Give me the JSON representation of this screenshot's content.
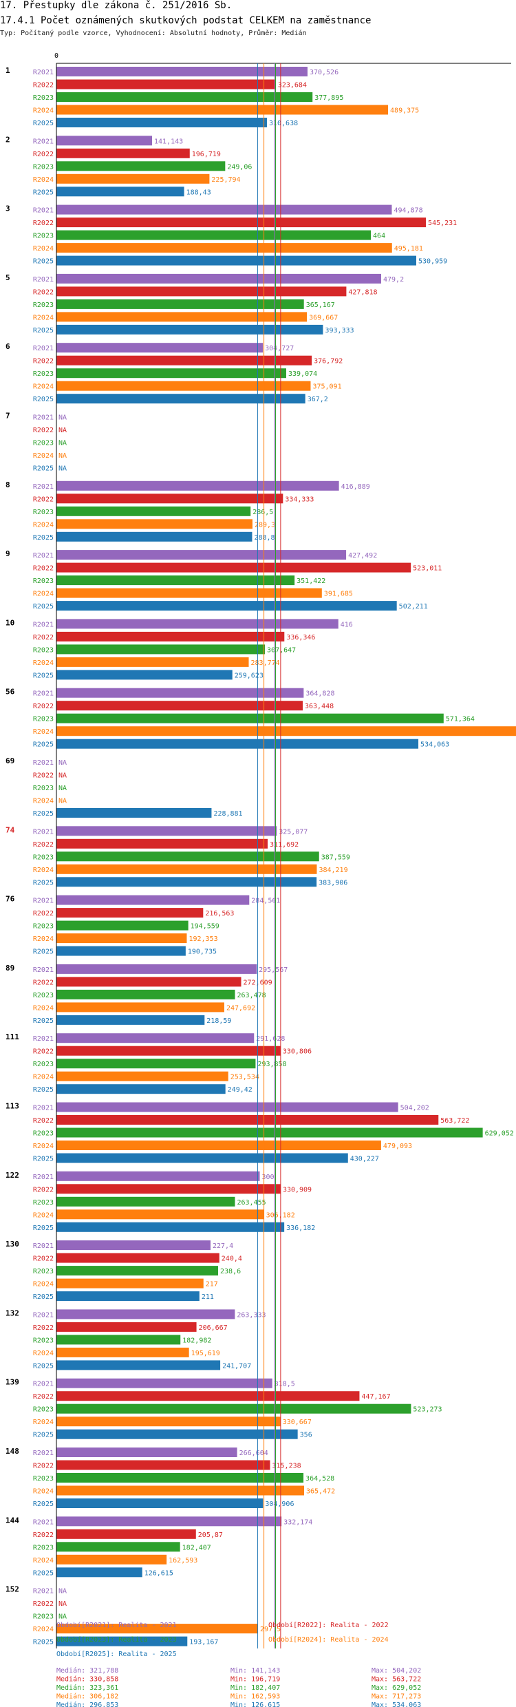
{
  "header": {
    "title": "17. Přestupky dle zákona č. 251/2016 Sb.",
    "subtitle": "17.4.1 Počet oznámených skutkových podstat CELKEM na zaměstnance",
    "info": "Typ: Počítaný podle vzorce, Vyhodnocení: Absolutní hodnoty, Průměr: Medián"
  },
  "colors": {
    "R2021": "#9467bd",
    "R2022": "#d62728",
    "R2023": "#2ca02c",
    "R2024": "#ff7f0e",
    "R2025": "#1f77b4"
  },
  "chart_data": {
    "type": "bar",
    "orientation": "horizontal",
    "axis_zero_label": "0",
    "series": [
      "R2021",
      "R2022",
      "R2023",
      "R2024",
      "R2025"
    ],
    "highlight_group": "74",
    "groups": [
      {
        "name": "1",
        "values": [
          "370,526",
          "323,684",
          "377,895",
          "489,375",
          "310,638"
        ]
      },
      {
        "name": "2",
        "values": [
          "141,143",
          "196,719",
          "249,06",
          "225,794",
          "188,43"
        ]
      },
      {
        "name": "3",
        "values": [
          "494,878",
          "545,231",
          "464",
          "495,181",
          "530,959"
        ]
      },
      {
        "name": "5",
        "values": [
          "479,2",
          "427,818",
          "365,167",
          "369,667",
          "393,333"
        ]
      },
      {
        "name": "6",
        "values": [
          "304,727",
          "376,792",
          "339,074",
          "375,091",
          "367,2"
        ]
      },
      {
        "name": "7",
        "values": [
          "NA",
          "NA",
          "NA",
          "NA",
          "NA"
        ]
      },
      {
        "name": "8",
        "values": [
          "416,889",
          "334,333",
          "286,5",
          "289,3",
          "288,8"
        ]
      },
      {
        "name": "9",
        "values": [
          "427,492",
          "523,011",
          "351,422",
          "391,685",
          "502,211"
        ]
      },
      {
        "name": "10",
        "values": [
          "416",
          "336,346",
          "307,647",
          "283,774",
          "259,623"
        ]
      },
      {
        "name": "56",
        "values": [
          "364,828",
          "363,448",
          "571,364",
          "717,273",
          "534,063"
        ]
      },
      {
        "name": "69",
        "values": [
          "NA",
          "NA",
          "NA",
          "NA",
          "228,881"
        ]
      },
      {
        "name": "74",
        "values": [
          "325,077",
          "311,692",
          "387,559",
          "384,219",
          "383,906"
        ]
      },
      {
        "name": "76",
        "values": [
          "284,561",
          "216,563",
          "194,559",
          "192,353",
          "190,735"
        ]
      },
      {
        "name": "89",
        "values": [
          "295,567",
          "272,609",
          "263,478",
          "247,692",
          "218,59"
        ]
      },
      {
        "name": "111",
        "values": [
          "291,628",
          "330,806",
          "293,858",
          "253,534",
          "249,42"
        ]
      },
      {
        "name": "113",
        "values": [
          "504,202",
          "563,722",
          "629,052",
          "479,093",
          "430,227"
        ]
      },
      {
        "name": "122",
        "values": [
          "300",
          "330,909",
          "263,455",
          "306,182",
          "336,182"
        ]
      },
      {
        "name": "130",
        "values": [
          "227,4",
          "240,4",
          "238,6",
          "217",
          "211"
        ]
      },
      {
        "name": "132",
        "values": [
          "263,333",
          "206,667",
          "182,982",
          "195,619",
          "241,707"
        ]
      },
      {
        "name": "139",
        "values": [
          "318,5",
          "447,167",
          "523,273",
          "330,667",
          "356"
        ]
      },
      {
        "name": "148",
        "values": [
          "266,604",
          "315,238",
          "364,528",
          "365,472",
          "304,906"
        ]
      },
      {
        "name": "144",
        "values": [
          "332,174",
          "205,87",
          "182,407",
          "162,593",
          "126,615"
        ]
      },
      {
        "name": "152",
        "values": [
          "NA",
          "NA",
          "NA",
          "297,5",
          "193,167"
        ]
      }
    ],
    "medians": {
      "R2021": 321.788,
      "R2022": 330.858,
      "R2023": 323.361,
      "R2024": 306.182,
      "R2025": 296.853
    },
    "xlim": [
      0,
      730
    ]
  },
  "legend": [
    {
      "key": "R2021",
      "text": "Období[R2021]: Realita - 2021"
    },
    {
      "key": "R2022",
      "text": "Období[R2022]: Realita - 2022"
    },
    {
      "key": "R2023",
      "text": "Období[R2023]: Realita - 2023"
    },
    {
      "key": "R2024",
      "text": "Období[R2024]: Realita - 2024"
    },
    {
      "key": "R2025",
      "text": "Období[R2025]: Realita - 2025"
    }
  ],
  "stats": [
    {
      "key": "R2021",
      "median": "Medián: 321,788",
      "min": "Min: 141,143",
      "max": "Max: 504,202"
    },
    {
      "key": "R2022",
      "median": "Medián: 330,858",
      "min": "Min: 196,719",
      "max": "Max: 563,722"
    },
    {
      "key": "R2023",
      "median": "Medián: 323,361",
      "min": "Min: 182,407",
      "max": "Max: 629,052"
    },
    {
      "key": "R2024",
      "median": "Medián: 306,182",
      "min": "Min: 162,593",
      "max": "Max: 717,273"
    },
    {
      "key": "R2025",
      "median": "Medián: 296,853",
      "min": "Min: 126,615",
      "max": "Max: 534,063"
    }
  ]
}
